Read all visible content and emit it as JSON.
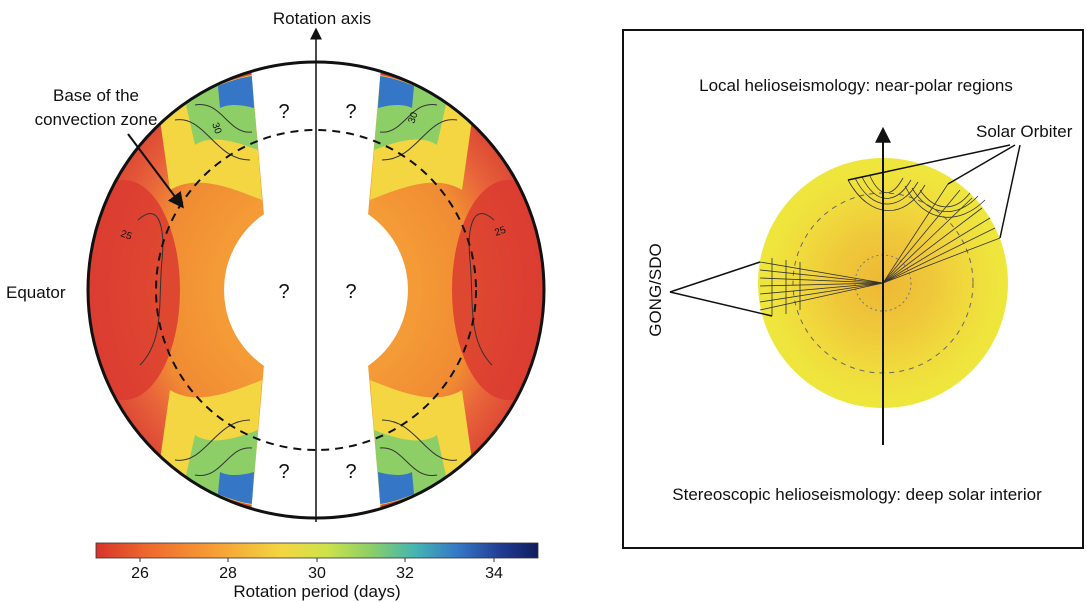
{
  "left_panel": {
    "rotation_axis_label": "Rotation axis",
    "convection_zone_label_line1": "Base of the",
    "convection_zone_label_line2": "convection zone",
    "equator_label": "Equator",
    "unknown_marker": "?",
    "contour_labels": [
      "30",
      "30",
      "25",
      "25"
    ],
    "colorbar": {
      "label": "Rotation period (days)",
      "ticks": [
        "26",
        "28",
        "30",
        "32",
        "34"
      ],
      "range": [
        25,
        35
      ],
      "colors": [
        "#d7342a",
        "#ef6a2e",
        "#f6a335",
        "#f3d641",
        "#cfe24a",
        "#8dcf66",
        "#44b6b0",
        "#3576c6",
        "#203a8f",
        "#0f1d5c"
      ]
    }
  },
  "right_panel": {
    "top_caption": "Local helioseismology: near-polar regions",
    "bottom_caption": "Stereoscopic helioseismology: deep solar interior",
    "solar_orbiter_label": "Solar Orbiter",
    "gong_sdo_label": "GONG/SDO",
    "sun_colors": {
      "surface": "#eeea3c",
      "core": "#eeb834"
    }
  }
}
